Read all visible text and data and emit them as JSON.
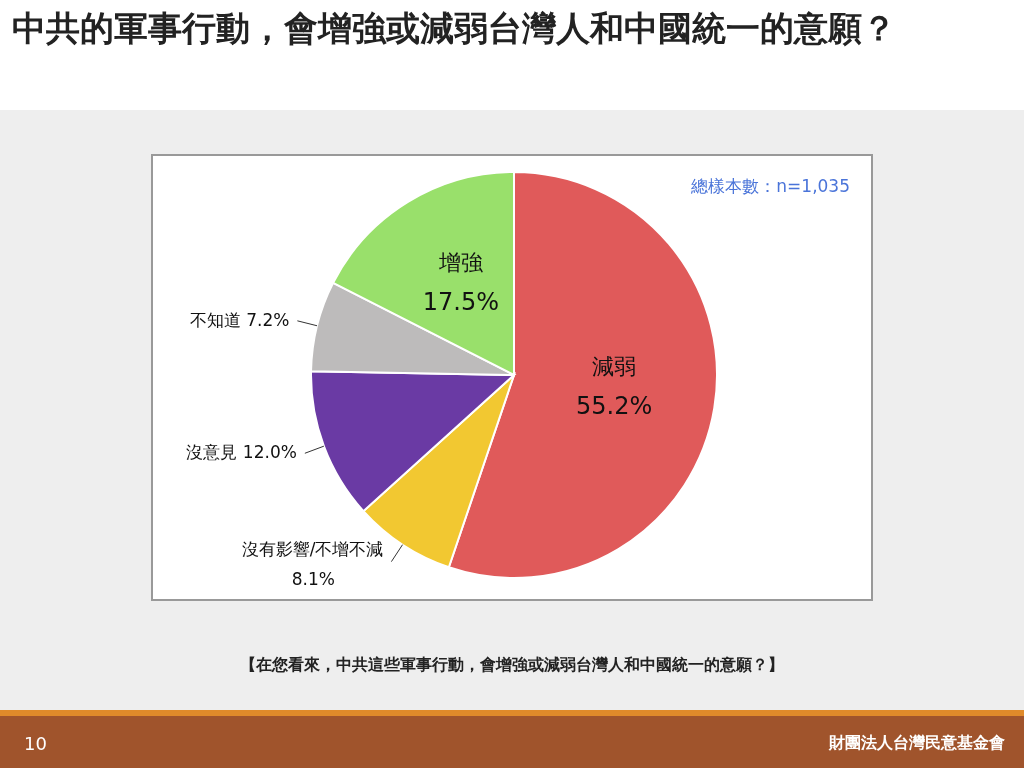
{
  "chart_data": {
    "type": "pie",
    "title": "中共的軍事行動，會增強或減弱台灣人和中國統一的意願？",
    "categories": [
      "減弱",
      "沒有影響/不增不減",
      "沒意見",
      "不知道",
      "增強"
    ],
    "values": [
      55.2,
      8.1,
      12.0,
      7.2,
      17.5
    ],
    "value_labels": [
      "55.2%",
      "8.1%",
      "12.0%",
      "7.2%",
      "17.5%"
    ],
    "colors": [
      "#e05a5a",
      "#f2c831",
      "#6a3aa4",
      "#bdbbbb",
      "#99e06b"
    ],
    "annotations": [
      "總樣本數：n=1,035",
      "【在您看來，中共這些軍事行動，會增強或減弱台灣人和中國統一的意願？】",
      "10",
      "財團法人台灣民意基金會"
    ]
  }
}
